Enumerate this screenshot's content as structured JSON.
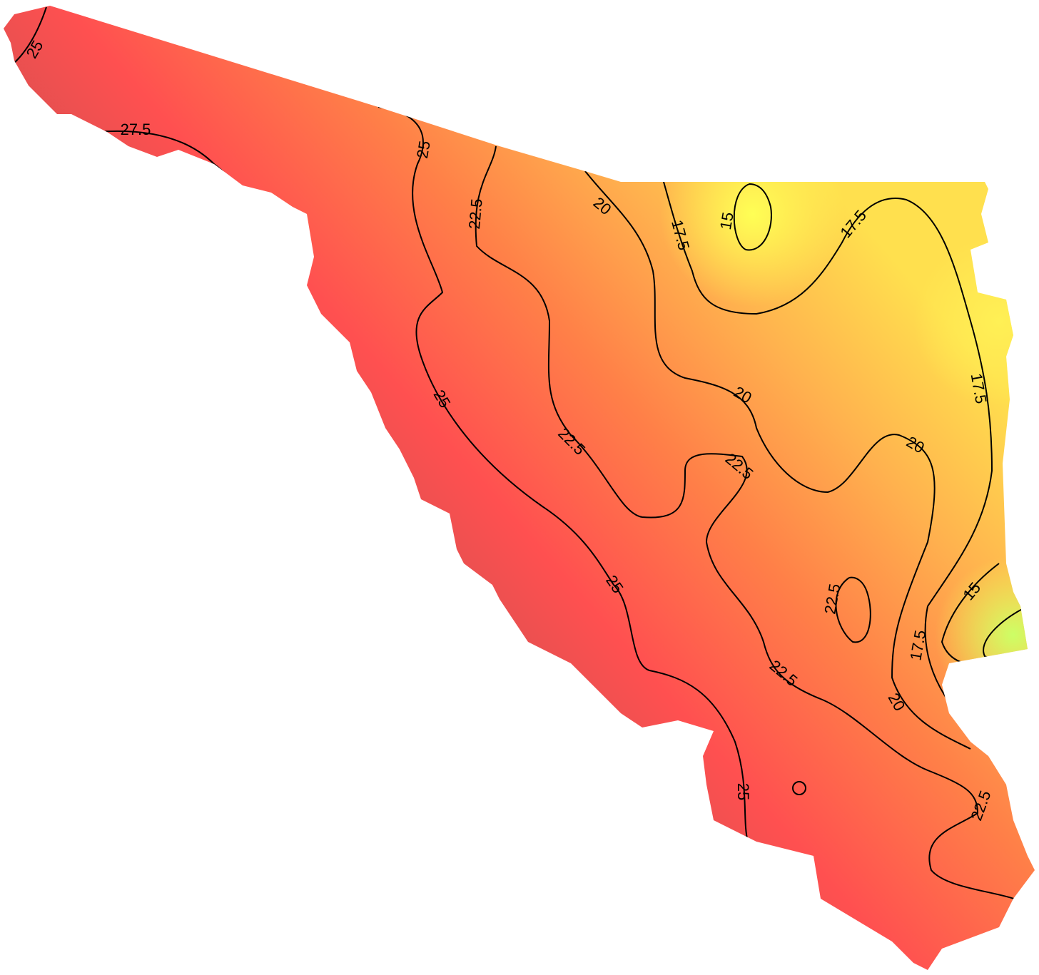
{
  "contour_labels": [
    25,
    27.5,
    25,
    22.5,
    20,
    17.5,
    15,
    17.5,
    25,
    22.5,
    20,
    20,
    22.5,
    22.5,
    25,
    17.5,
    15,
    17.5,
    20,
    22.5,
    25,
    22.5
  ]
}
